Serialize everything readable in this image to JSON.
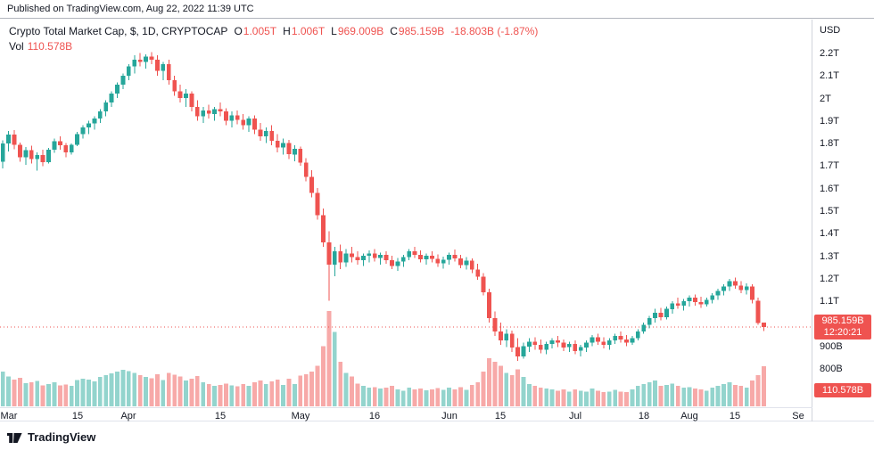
{
  "publish_bar": {
    "text": "Published on TradingView.com, Aug 22, 2022 11:39 UTC"
  },
  "legend": {
    "title": "Crypto Total Market Cap, $, 1D, CRYPTOCAP",
    "ohlc": [
      {
        "label": "O",
        "value": "1.005T"
      },
      {
        "label": "H",
        "value": "1.006T"
      },
      {
        "label": "L",
        "value": "969.009B"
      },
      {
        "label": "C",
        "value": "985.159B"
      }
    ],
    "change": "-18.803B (-1.87%)",
    "vol_label": "Vol",
    "vol_value": "110.578B"
  },
  "price_axis": {
    "currency": "USD",
    "labels": [
      {
        "text": "2.2T",
        "value": 2200
      },
      {
        "text": "2.1T",
        "value": 2100
      },
      {
        "text": "2T",
        "value": 2000
      },
      {
        "text": "1.9T",
        "value": 1900
      },
      {
        "text": "1.8T",
        "value": 1800
      },
      {
        "text": "1.7T",
        "value": 1700
      },
      {
        "text": "1.6T",
        "value": 1600
      },
      {
        "text": "1.5T",
        "value": 1500
      },
      {
        "text": "1.4T",
        "value": 1400
      },
      {
        "text": "1.3T",
        "value": 1300
      },
      {
        "text": "1.2T",
        "value": 1200
      },
      {
        "text": "1.1T",
        "value": 1100
      },
      {
        "text": "900B",
        "value": 900
      },
      {
        "text": "800B",
        "value": 800
      }
    ],
    "price_badge": {
      "price": "985.159B",
      "countdown": "12:20:21"
    },
    "vol_badge": "110.578B"
  },
  "footer": {
    "brand": "TradingView"
  },
  "colors": {
    "up": "#26a69a",
    "down": "#ef5350",
    "volume_up": "#93d4cd",
    "volume_down": "#f7a9a8",
    "current_price_line": "#ef5350",
    "badge_bg": "#ef5350"
  },
  "chart_data": {
    "type": "candlestick",
    "title": "Crypto Total Market Cap, $, 1D, CRYPTOCAP",
    "units": "billions USD",
    "timeframe": "1D",
    "date_range": "Mar 2022 - Aug 22 2022",
    "ylim": [
      745,
      2365
    ],
    "current_price": 985.159,
    "current_volume": 110.578,
    "last_bar": {
      "open": 1005.0,
      "high": 1006.0,
      "low": 969.009,
      "close": 985.159,
      "change": -18.803,
      "change_pct": -1.87
    },
    "time_ticks": [
      {
        "label": "Mar",
        "index": 1
      },
      {
        "label": "15",
        "index": 13
      },
      {
        "label": "Apr",
        "index": 22
      },
      {
        "label": "15",
        "index": 38
      },
      {
        "label": "May",
        "index": 52
      },
      {
        "label": "16",
        "index": 65
      },
      {
        "label": "Jun",
        "index": 78
      },
      {
        "label": "15",
        "index": 87
      },
      {
        "label": "Jul",
        "index": 100
      },
      {
        "label": "18",
        "index": 112
      },
      {
        "label": "Aug",
        "index": 120
      },
      {
        "label": "15",
        "index": 128
      },
      {
        "label": "Se",
        "index": 139
      }
    ],
    "candles": [
      [
        1720,
        1815,
        1690,
        1800,
        95
      ],
      [
        1800,
        1855,
        1765,
        1840,
        82
      ],
      [
        1840,
        1860,
        1775,
        1795,
        74
      ],
      [
        1795,
        1805,
        1720,
        1740,
        78
      ],
      [
        1740,
        1785,
        1705,
        1770,
        64
      ],
      [
        1770,
        1790,
        1712,
        1732,
        66
      ],
      [
        1732,
        1762,
        1680,
        1750,
        70
      ],
      [
        1750,
        1772,
        1700,
        1718,
        58
      ],
      [
        1718,
        1780,
        1712,
        1772,
        61
      ],
      [
        1772,
        1822,
        1760,
        1810,
        66
      ],
      [
        1810,
        1832,
        1772,
        1792,
        57
      ],
      [
        1792,
        1802,
        1740,
        1762,
        60
      ],
      [
        1762,
        1800,
        1752,
        1794,
        56
      ],
      [
        1794,
        1852,
        1788,
        1842,
        72
      ],
      [
        1842,
        1882,
        1822,
        1872,
        76
      ],
      [
        1872,
        1902,
        1842,
        1890,
        73
      ],
      [
        1890,
        1922,
        1862,
        1912,
        69
      ],
      [
        1912,
        1952,
        1892,
        1942,
        81
      ],
      [
        1942,
        1992,
        1922,
        1982,
        86
      ],
      [
        1982,
        2032,
        1962,
        2022,
        91
      ],
      [
        2022,
        2072,
        2002,
        2062,
        96
      ],
      [
        2062,
        2112,
        2042,
        2102,
        101
      ],
      [
        2102,
        2152,
        2082,
        2142,
        97
      ],
      [
        2142,
        2192,
        2112,
        2172,
        92
      ],
      [
        2172,
        2202,
        2142,
        2162,
        86
      ],
      [
        2162,
        2196,
        2132,
        2186,
        81
      ],
      [
        2186,
        2206,
        2152,
        2172,
        77
      ],
      [
        2172,
        2192,
        2102,
        2122,
        88
      ],
      [
        2122,
        2162,
        2082,
        2152,
        72
      ],
      [
        2152,
        2172,
        2062,
        2082,
        92
      ],
      [
        2082,
        2102,
        2012,
        2032,
        87
      ],
      [
        2032,
        2062,
        1982,
        2002,
        82
      ],
      [
        2002,
        2042,
        1962,
        2022,
        71
      ],
      [
        2022,
        2032,
        1942,
        1962,
        76
      ],
      [
        1962,
        1992,
        1902,
        1922,
        83
      ],
      [
        1922,
        1962,
        1892,
        1946,
        66
      ],
      [
        1946,
        1972,
        1912,
        1932,
        61
      ],
      [
        1932,
        1962,
        1902,
        1952,
        56
      ],
      [
        1952,
        1982,
        1922,
        1942,
        59
      ],
      [
        1942,
        1956,
        1882,
        1902,
        63
      ],
      [
        1902,
        1942,
        1872,
        1926,
        58
      ],
      [
        1926,
        1946,
        1886,
        1906,
        55
      ],
      [
        1906,
        1932,
        1862,
        1882,
        61
      ],
      [
        1882,
        1922,
        1852,
        1912,
        56
      ],
      [
        1912,
        1926,
        1842,
        1862,
        66
      ],
      [
        1862,
        1892,
        1812,
        1832,
        71
      ],
      [
        1832,
        1872,
        1802,
        1856,
        61
      ],
      [
        1856,
        1882,
        1792,
        1812,
        69
      ],
      [
        1812,
        1842,
        1762,
        1782,
        73
      ],
      [
        1782,
        1822,
        1752,
        1802,
        59
      ],
      [
        1802,
        1816,
        1732,
        1752,
        76
      ],
      [
        1752,
        1792,
        1722,
        1776,
        61
      ],
      [
        1776,
        1786,
        1702,
        1716,
        84
      ],
      [
        1716,
        1736,
        1632,
        1652,
        88
      ],
      [
        1652,
        1682,
        1562,
        1582,
        95
      ],
      [
        1582,
        1602,
        1462,
        1482,
        112
      ],
      [
        1482,
        1512,
        1342,
        1362,
        165
      ],
      [
        1362,
        1412,
        1102,
        1262,
        262
      ],
      [
        1262,
        1342,
        1212,
        1322,
        205
      ],
      [
        1322,
        1352,
        1242,
        1272,
        122
      ],
      [
        1272,
        1332,
        1252,
        1312,
        92
      ],
      [
        1312,
        1342,
        1272,
        1296,
        82
      ],
      [
        1296,
        1322,
        1262,
        1282,
        62
      ],
      [
        1282,
        1312,
        1256,
        1302,
        56
      ],
      [
        1302,
        1326,
        1272,
        1312,
        51
      ],
      [
        1312,
        1332,
        1276,
        1292,
        53
      ],
      [
        1292,
        1316,
        1262,
        1306,
        49
      ],
      [
        1306,
        1322,
        1266,
        1282,
        51
      ],
      [
        1282,
        1302,
        1242,
        1256,
        56
      ],
      [
        1256,
        1292,
        1236,
        1276,
        46
      ],
      [
        1276,
        1306,
        1252,
        1296,
        43
      ],
      [
        1296,
        1332,
        1282,
        1322,
        51
      ],
      [
        1322,
        1342,
        1292,
        1306,
        46
      ],
      [
        1306,
        1326,
        1272,
        1286,
        49
      ],
      [
        1286,
        1312,
        1262,
        1302,
        44
      ],
      [
        1302,
        1322,
        1272,
        1288,
        47
      ],
      [
        1288,
        1308,
        1252,
        1268,
        50
      ],
      [
        1268,
        1298,
        1244,
        1284,
        45
      ],
      [
        1284,
        1316,
        1262,
        1306,
        51
      ],
      [
        1306,
        1330,
        1276,
        1290,
        46
      ],
      [
        1290,
        1306,
        1246,
        1260,
        53
      ],
      [
        1260,
        1296,
        1240,
        1280,
        45
      ],
      [
        1280,
        1290,
        1226,
        1240,
        59
      ],
      [
        1240,
        1266,
        1196,
        1210,
        66
      ],
      [
        1210,
        1226,
        1126,
        1140,
        96
      ],
      [
        1140,
        1156,
        1006,
        1026,
        132
      ],
      [
        1026,
        1056,
        946,
        966,
        122
      ],
      [
        966,
        1006,
        906,
        926,
        112
      ],
      [
        926,
        976,
        896,
        956,
        92
      ],
      [
        956,
        970,
        876,
        896,
        86
      ],
      [
        896,
        936,
        836,
        856,
        102
      ],
      [
        856,
        916,
        846,
        900,
        81
      ],
      [
        900,
        936,
        876,
        920,
        61
      ],
      [
        920,
        940,
        886,
        906,
        56
      ],
      [
        906,
        930,
        870,
        886,
        51
      ],
      [
        886,
        920,
        866,
        910,
        49
      ],
      [
        910,
        936,
        890,
        926,
        46
      ],
      [
        926,
        946,
        896,
        916,
        43
      ],
      [
        916,
        930,
        880,
        896,
        47
      ],
      [
        896,
        920,
        876,
        910,
        41
      ],
      [
        910,
        926,
        866,
        880,
        46
      ],
      [
        880,
        906,
        856,
        896,
        43
      ],
      [
        896,
        926,
        876,
        916,
        41
      ],
      [
        916,
        950,
        900,
        940,
        49
      ],
      [
        940,
        956,
        906,
        920,
        43
      ],
      [
        920,
        940,
        890,
        906,
        39
      ],
      [
        906,
        936,
        886,
        926,
        41
      ],
      [
        926,
        956,
        910,
        946,
        45
      ],
      [
        946,
        966,
        916,
        930,
        41
      ],
      [
        930,
        950,
        900,
        916,
        39
      ],
      [
        916,
        946,
        906,
        936,
        46
      ],
      [
        936,
        976,
        926,
        966,
        56
      ],
      [
        966,
        1006,
        956,
        996,
        61
      ],
      [
        996,
        1036,
        980,
        1026,
        66
      ],
      [
        1026,
        1066,
        1006,
        1050,
        71
      ],
      [
        1050,
        1070,
        1016,
        1030,
        56
      ],
      [
        1030,
        1076,
        1020,
        1066,
        59
      ],
      [
        1066,
        1100,
        1046,
        1090,
        63
      ],
      [
        1090,
        1116,
        1066,
        1080,
        56
      ],
      [
        1080,
        1110,
        1060,
        1100,
        51
      ],
      [
        1100,
        1126,
        1076,
        1116,
        53
      ],
      [
        1116,
        1130,
        1080,
        1096,
        49
      ],
      [
        1096,
        1120,
        1070,
        1086,
        46
      ],
      [
        1086,
        1116,
        1076,
        1106,
        43
      ],
      [
        1106,
        1136,
        1090,
        1126,
        51
      ],
      [
        1126,
        1156,
        1106,
        1146,
        56
      ],
      [
        1146,
        1176,
        1126,
        1166,
        61
      ],
      [
        1166,
        1200,
        1146,
        1190,
        66
      ],
      [
        1190,
        1206,
        1156,
        1170,
        59
      ],
      [
        1170,
        1190,
        1136,
        1150,
        56
      ],
      [
        1150,
        1180,
        1130,
        1166,
        51
      ],
      [
        1166,
        1176,
        1090,
        1106,
        71
      ],
      [
        1102,
        1116,
        996,
        1004,
        86
      ],
      [
        1005,
        1006,
        969.009,
        985.159,
        110.578
      ]
    ]
  }
}
